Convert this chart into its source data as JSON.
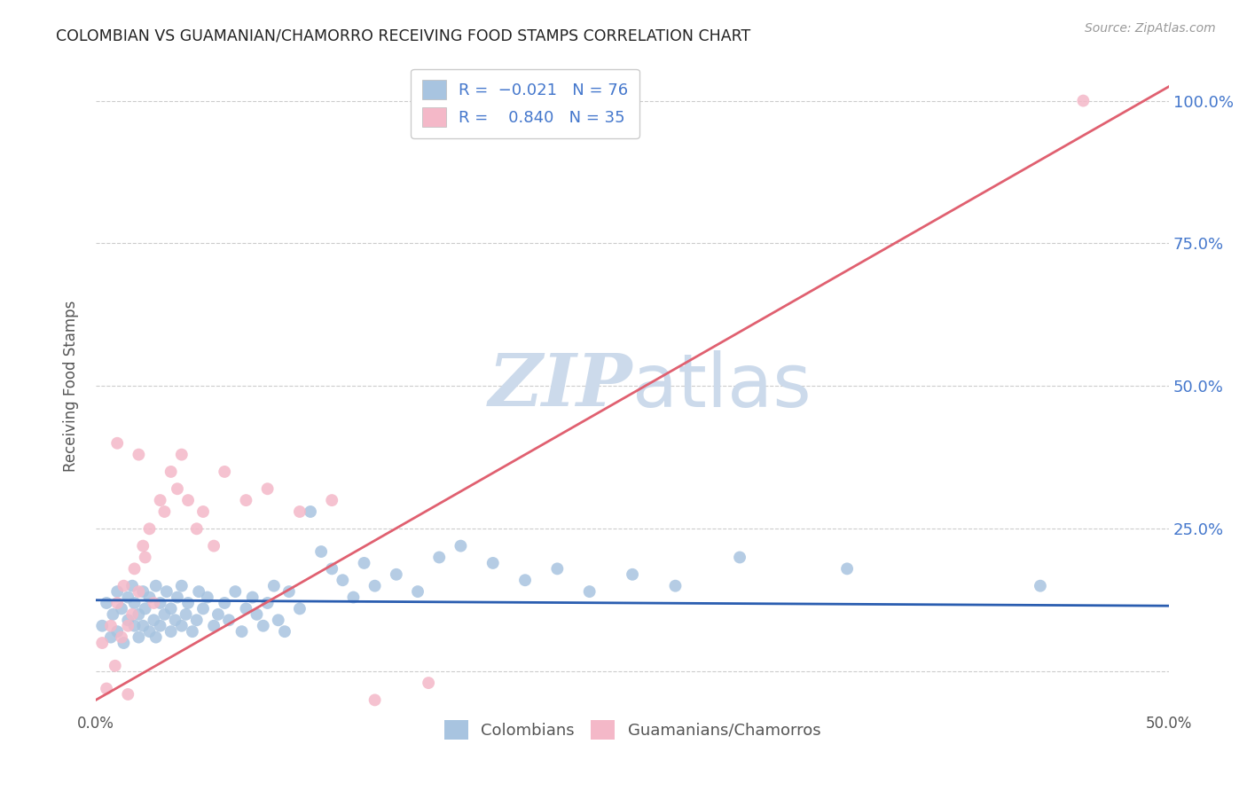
{
  "title": "COLOMBIAN VS GUAMANIAN/CHAMORRO RECEIVING FOOD STAMPS CORRELATION CHART",
  "source": "Source: ZipAtlas.com",
  "ylabel": "Receiving Food Stamps",
  "xlim": [
    0.0,
    0.5
  ],
  "ylim": [
    -0.07,
    1.07
  ],
  "yticks": [
    0.0,
    0.25,
    0.5,
    0.75,
    1.0
  ],
  "ytick_labels_right": [
    "",
    "25.0%",
    "50.0%",
    "75.0%",
    "100.0%"
  ],
  "xticks": [
    0.0,
    0.1,
    0.2,
    0.3,
    0.4,
    0.5
  ],
  "xtick_labels": [
    "0.0%",
    "",
    "",
    "",
    "",
    "50.0%"
  ],
  "colombian_R": -0.021,
  "colombian_N": 76,
  "guamanian_R": 0.84,
  "guamanian_N": 35,
  "colombian_color": "#a8c4e0",
  "guamanian_color": "#f4b8c8",
  "colombian_line_color": "#2a5db0",
  "guamanian_line_color": "#e06070",
  "legend_label_colombian": "Colombians",
  "legend_label_guamanian": "Guamanians/Chamorros",
  "watermark_zip": "ZIP",
  "watermark_atlas": "atlas",
  "watermark_color": "#ccdaeb",
  "background_color": "#ffffff",
  "colombian_scatter_x": [
    0.003,
    0.005,
    0.007,
    0.008,
    0.01,
    0.01,
    0.012,
    0.013,
    0.015,
    0.015,
    0.017,
    0.018,
    0.018,
    0.02,
    0.02,
    0.022,
    0.022,
    0.023,
    0.025,
    0.025,
    0.027,
    0.028,
    0.028,
    0.03,
    0.03,
    0.032,
    0.033,
    0.035,
    0.035,
    0.037,
    0.038,
    0.04,
    0.04,
    0.042,
    0.043,
    0.045,
    0.047,
    0.048,
    0.05,
    0.052,
    0.055,
    0.057,
    0.06,
    0.062,
    0.065,
    0.068,
    0.07,
    0.073,
    0.075,
    0.078,
    0.08,
    0.083,
    0.085,
    0.088,
    0.09,
    0.095,
    0.1,
    0.105,
    0.11,
    0.115,
    0.12,
    0.125,
    0.13,
    0.14,
    0.15,
    0.16,
    0.17,
    0.185,
    0.2,
    0.215,
    0.23,
    0.25,
    0.27,
    0.3,
    0.35,
    0.44
  ],
  "colombian_scatter_y": [
    0.08,
    0.12,
    0.06,
    0.1,
    0.14,
    0.07,
    0.11,
    0.05,
    0.13,
    0.09,
    0.15,
    0.08,
    0.12,
    0.06,
    0.1,
    0.14,
    0.08,
    0.11,
    0.07,
    0.13,
    0.09,
    0.15,
    0.06,
    0.12,
    0.08,
    0.1,
    0.14,
    0.07,
    0.11,
    0.09,
    0.13,
    0.15,
    0.08,
    0.1,
    0.12,
    0.07,
    0.09,
    0.14,
    0.11,
    0.13,
    0.08,
    0.1,
    0.12,
    0.09,
    0.14,
    0.07,
    0.11,
    0.13,
    0.1,
    0.08,
    0.12,
    0.15,
    0.09,
    0.07,
    0.14,
    0.11,
    0.28,
    0.21,
    0.18,
    0.16,
    0.13,
    0.19,
    0.15,
    0.17,
    0.14,
    0.2,
    0.22,
    0.19,
    0.16,
    0.18,
    0.14,
    0.17,
    0.15,
    0.2,
    0.18,
    0.15
  ],
  "guamanian_scatter_x": [
    0.003,
    0.005,
    0.007,
    0.009,
    0.01,
    0.012,
    0.013,
    0.015,
    0.015,
    0.017,
    0.018,
    0.02,
    0.022,
    0.023,
    0.025,
    0.027,
    0.03,
    0.032,
    0.035,
    0.038,
    0.04,
    0.043,
    0.047,
    0.05,
    0.055,
    0.06,
    0.07,
    0.08,
    0.095,
    0.11,
    0.13,
    0.155,
    0.01,
    0.02,
    0.46
  ],
  "guamanian_scatter_y": [
    0.05,
    -0.03,
    0.08,
    0.01,
    0.12,
    0.06,
    0.15,
    0.08,
    -0.04,
    0.1,
    0.18,
    0.14,
    0.22,
    0.2,
    0.25,
    0.12,
    0.3,
    0.28,
    0.35,
    0.32,
    0.38,
    0.3,
    0.25,
    0.28,
    0.22,
    0.35,
    0.3,
    0.32,
    0.28,
    0.3,
    -0.05,
    -0.02,
    0.4,
    0.38,
    1.0
  ]
}
